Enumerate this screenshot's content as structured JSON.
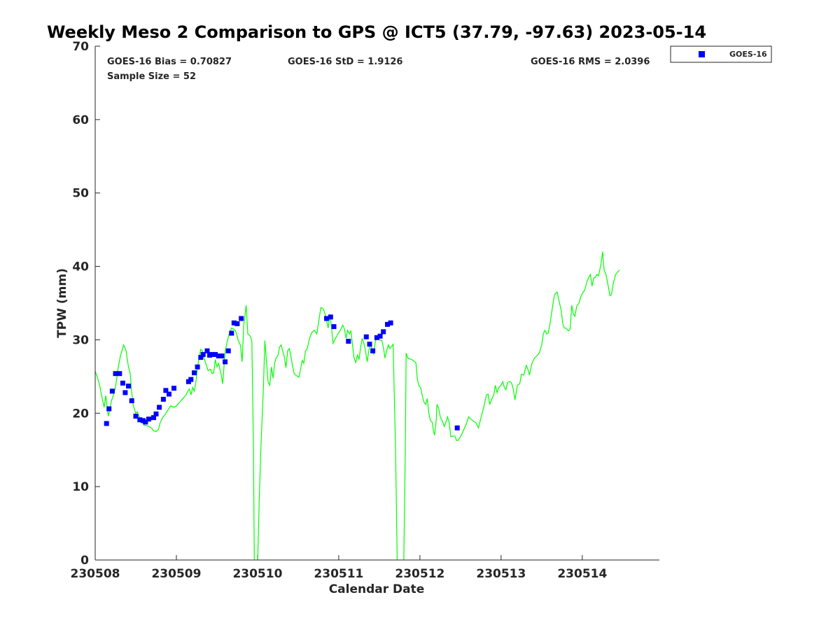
{
  "colors": {
    "gps_line": "#00ff00",
    "goes_marker": "#0000ff",
    "axis": "#262626"
  },
  "chart_data": {
    "type": "line",
    "title": "Weekly Meso 2 Comparison to GPS @ ICT5 (37.79, -97.63) 2023-05-14",
    "xlabel": "Calendar Date",
    "ylabel": "TPW (mm)",
    "xlim": [
      0,
      6.95
    ],
    "ylim": [
      0,
      70
    ],
    "x_ticks": [
      0,
      1,
      2,
      3,
      4,
      5,
      6
    ],
    "x_tick_labels": [
      "230508",
      "230509",
      "230510",
      "230511",
      "230512",
      "230513",
      "230514"
    ],
    "y_ticks": [
      0,
      10,
      20,
      30,
      40,
      50,
      60,
      70
    ],
    "y_tick_labels": [
      "0",
      "10",
      "20",
      "30",
      "40",
      "50",
      "60",
      "70"
    ],
    "stats": {
      "bias": "GOES-16 Bias = 0.70827",
      "std": "GOES-16 StD = 1.9126",
      "rms": "GOES-16 RMS = 2.0396",
      "sample": "Sample Size = 52"
    },
    "legend": {
      "position": "top-right",
      "entries": [
        "GOES-16"
      ]
    },
    "gps_series": [
      [
        0,
        25.7
      ],
      [
        0.03,
        24.8
      ],
      [
        0.06,
        23.5
      ],
      [
        0.09,
        21.8
      ],
      [
        0.11,
        20.8
      ],
      [
        0.13,
        22.4
      ],
      [
        0.16,
        19.6
      ],
      [
        0.18,
        20.5
      ],
      [
        0.2,
        21.7
      ],
      [
        0.22,
        22.3
      ],
      [
        0.25,
        23.5
      ],
      [
        0.28,
        26
      ],
      [
        0.31,
        27.8
      ],
      [
        0.35,
        29.3
      ],
      [
        0.38,
        28.5
      ],
      [
        0.41,
        26.3
      ],
      [
        0.43,
        25.5
      ],
      [
        0.45,
        22.8
      ],
      [
        0.47,
        21
      ],
      [
        0.5,
        20
      ],
      [
        0.52,
        20.2
      ],
      [
        0.55,
        19.2
      ],
      [
        0.58,
        18.8
      ],
      [
        0.6,
        18.4
      ],
      [
        0.63,
        18.3
      ],
      [
        0.66,
        18.2
      ],
      [
        0.7,
        17.9
      ],
      [
        0.72,
        17.6
      ],
      [
        0.75,
        17.5
      ],
      [
        0.78,
        17.8
      ],
      [
        0.8,
        18.7
      ],
      [
        0.83,
        19.4
      ],
      [
        0.86,
        19.8
      ],
      [
        0.9,
        20.5
      ],
      [
        0.93,
        21
      ],
      [
        0.97,
        20.8
      ],
      [
        1,
        21
      ],
      [
        1.04,
        21.5
      ],
      [
        1.08,
        22
      ],
      [
        1.12,
        22.5
      ],
      [
        1.14,
        23
      ],
      [
        1.16,
        23.3
      ],
      [
        1.18,
        22.5
      ],
      [
        1.2,
        23.5
      ],
      [
        1.22,
        23
      ],
      [
        1.24,
        24.2
      ],
      [
        1.26,
        26.2
      ],
      [
        1.28,
        27.5
      ],
      [
        1.3,
        28.7
      ],
      [
        1.32,
        28.5
      ],
      [
        1.34,
        27.5
      ],
      [
        1.37,
        26.5
      ],
      [
        1.39,
        25.8
      ],
      [
        1.42,
        26
      ],
      [
        1.44,
        25.4
      ],
      [
        1.46,
        25.5
      ],
      [
        1.48,
        27.3
      ],
      [
        1.5,
        26.3
      ],
      [
        1.52,
        26.8
      ],
      [
        1.55,
        25.3
      ],
      [
        1.57,
        24
      ],
      [
        1.6,
        28.3
      ],
      [
        1.62,
        29.5
      ],
      [
        1.65,
        30.8
      ],
      [
        1.68,
        31.6
      ],
      [
        1.7,
        31.5
      ],
      [
        1.73,
        31.2
      ],
      [
        1.76,
        30
      ],
      [
        1.79,
        29.2
      ],
      [
        1.81,
        27
      ],
      [
        1.83,
        32
      ],
      [
        1.86,
        34.7
      ],
      [
        1.88,
        30.8
      ],
      [
        1.91,
        30.5
      ],
      [
        1.93,
        29.8
      ],
      [
        1.95,
        15
      ],
      [
        1.96,
        0
      ],
      [
        1.98,
        -1
      ],
      [
        2,
        -1
      ],
      [
        2.02,
        8
      ],
      [
        2.04,
        15
      ],
      [
        2.07,
        23
      ],
      [
        2.09,
        29.9
      ],
      [
        2.11,
        27
      ],
      [
        2.13,
        24.2
      ],
      [
        2.15,
        23.8
      ],
      [
        2.17,
        26.3
      ],
      [
        2.19,
        24.8
      ],
      [
        2.21,
        26.8
      ],
      [
        2.23,
        27.6
      ],
      [
        2.25,
        27.8
      ],
      [
        2.27,
        29
      ],
      [
        2.29,
        29.3
      ],
      [
        2.31,
        28.5
      ],
      [
        2.33,
        27.7
      ],
      [
        2.35,
        26.2
      ],
      [
        2.37,
        28.5
      ],
      [
        2.39,
        28.8
      ],
      [
        2.41,
        27.8
      ],
      [
        2.43,
        26.5
      ],
      [
        2.45,
        25.4
      ],
      [
        2.48,
        25.1
      ],
      [
        2.51,
        24.9
      ],
      [
        2.53,
        26
      ],
      [
        2.55,
        27.2
      ],
      [
        2.57,
        26.8
      ],
      [
        2.59,
        28.5
      ],
      [
        2.61,
        28.7
      ],
      [
        2.64,
        30.2
      ],
      [
        2.67,
        31
      ],
      [
        2.7,
        31.3
      ],
      [
        2.73,
        30.8
      ],
      [
        2.76,
        33
      ],
      [
        2.78,
        34.4
      ],
      [
        2.81,
        34.2
      ],
      [
        2.84,
        33.2
      ],
      [
        2.87,
        31.6
      ],
      [
        2.89,
        33.5
      ],
      [
        2.91,
        31.8
      ],
      [
        2.93,
        29.5
      ],
      [
        2.96,
        30.2
      ],
      [
        2.99,
        30.8
      ],
      [
        3.02,
        31.3
      ],
      [
        3.05,
        32
      ],
      [
        3.07,
        31.5
      ],
      [
        3.09,
        30.2
      ],
      [
        3.11,
        31.3
      ],
      [
        3.13,
        30.8
      ],
      [
        3.15,
        31.2
      ],
      [
        3.17,
        29.3
      ],
      [
        3.19,
        27.5
      ],
      [
        3.21,
        26.9
      ],
      [
        3.23,
        27.9
      ],
      [
        3.25,
        27.3
      ],
      [
        3.27,
        29
      ],
      [
        3.29,
        30.2
      ],
      [
        3.31,
        29.5
      ],
      [
        3.33,
        28.5
      ],
      [
        3.35,
        27
      ],
      [
        3.37,
        28.5
      ],
      [
        3.39,
        29.3
      ],
      [
        3.41,
        28.8
      ],
      [
        3.43,
        28
      ],
      [
        3.45,
        29.7
      ],
      [
        3.47,
        30.5
      ],
      [
        3.5,
        30
      ],
      [
        3.53,
        29.9
      ],
      [
        3.55,
        29
      ],
      [
        3.57,
        27.5
      ],
      [
        3.59,
        28.5
      ],
      [
        3.61,
        29.3
      ],
      [
        3.63,
        28.8
      ],
      [
        3.65,
        29.1
      ],
      [
        3.67,
        29.4
      ],
      [
        3.7,
        15
      ],
      [
        3.72,
        0
      ],
      [
        3.74,
        -1
      ],
      [
        3.76,
        -1
      ],
      [
        3.78,
        -1
      ],
      [
        3.8,
        -1
      ],
      [
        3.82,
        15
      ],
      [
        3.83,
        28.2
      ],
      [
        3.85,
        27.5
      ],
      [
        3.9,
        27.3
      ],
      [
        3.95,
        26.9
      ],
      [
        3.97,
        24.5
      ],
      [
        3.99,
        23.7
      ],
      [
        4.01,
        23.5
      ],
      [
        4.03,
        22.3
      ],
      [
        4.05,
        21.5
      ],
      [
        4.07,
        21.2
      ],
      [
        4.09,
        22
      ],
      [
        4.11,
        20
      ],
      [
        4.13,
        19
      ],
      [
        4.15,
        18.8
      ],
      [
        4.17,
        17.4
      ],
      [
        4.18,
        17
      ],
      [
        4.2,
        19
      ],
      [
        4.21,
        21.2
      ],
      [
        4.23,
        20.7
      ],
      [
        4.25,
        19.5
      ],
      [
        4.28,
        18.8
      ],
      [
        4.3,
        18.2
      ],
      [
        4.32,
        18.8
      ],
      [
        4.34,
        19.5
      ],
      [
        4.36,
        18.8
      ],
      [
        4.38,
        16.8
      ],
      [
        4.41,
        16.9
      ],
      [
        4.43,
        16.9
      ],
      [
        4.45,
        16.3
      ],
      [
        4.47,
        16.3
      ],
      [
        4.5,
        16.8
      ],
      [
        4.53,
        17.5
      ],
      [
        4.57,
        18.5
      ],
      [
        4.6,
        19.5
      ],
      [
        4.63,
        19.2
      ],
      [
        4.66,
        18.9
      ],
      [
        4.69,
        18.7
      ],
      [
        4.72,
        18
      ],
      [
        4.75,
        19.3
      ],
      [
        4.79,
        21
      ],
      [
        4.82,
        22.5
      ],
      [
        4.84,
        22.6
      ],
      [
        4.86,
        21.2
      ],
      [
        4.88,
        21.8
      ],
      [
        4.91,
        22.5
      ],
      [
        4.93,
        23.8
      ],
      [
        4.95,
        22.8
      ],
      [
        4.97,
        23.5
      ],
      [
        5,
        23.8
      ],
      [
        5.02,
        24.3
      ],
      [
        5.04,
        23.5
      ],
      [
        5.06,
        23.2
      ],
      [
        5.08,
        24.2
      ],
      [
        5.11,
        24.3
      ],
      [
        5.13,
        24.1
      ],
      [
        5.15,
        23.3
      ],
      [
        5.17,
        21.8
      ],
      [
        5.2,
        23.8
      ],
      [
        5.23,
        24
      ],
      [
        5.25,
        25.3
      ],
      [
        5.28,
        25.2
      ],
      [
        5.31,
        26.5
      ],
      [
        5.33,
        26
      ],
      [
        5.35,
        25.2
      ],
      [
        5.38,
        26.8
      ],
      [
        5.41,
        27.5
      ],
      [
        5.44,
        27.8
      ],
      [
        5.47,
        28.2
      ],
      [
        5.5,
        29.3
      ],
      [
        5.52,
        30.8
      ],
      [
        5.54,
        31.3
      ],
      [
        5.56,
        30.8
      ],
      [
        5.58,
        30.9
      ],
      [
        5.6,
        32
      ],
      [
        5.62,
        33.5
      ],
      [
        5.64,
        35
      ],
      [
        5.66,
        36.2
      ],
      [
        5.69,
        36.5
      ],
      [
        5.71,
        35.5
      ],
      [
        5.74,
        34
      ],
      [
        5.76,
        32.2
      ],
      [
        5.78,
        31.6
      ],
      [
        5.8,
        31.6
      ],
      [
        5.83,
        31.2
      ],
      [
        5.85,
        31.4
      ],
      [
        5.87,
        34.7
      ],
      [
        5.89,
        33.5
      ],
      [
        5.91,
        33.2
      ],
      [
        5.93,
        34.5
      ],
      [
        5.96,
        35
      ],
      [
        5.98,
        35.8
      ],
      [
        6,
        36.3
      ],
      [
        6.03,
        36.8
      ],
      [
        6.06,
        38
      ],
      [
        6.08,
        38.5
      ],
      [
        6.1,
        38.9
      ],
      [
        6.12,
        37.3
      ],
      [
        6.14,
        38.4
      ],
      [
        6.16,
        38.5
      ],
      [
        6.18,
        38.9
      ],
      [
        6.2,
        38.7
      ],
      [
        6.23,
        40.3
      ],
      [
        6.25,
        42
      ],
      [
        6.27,
        39.4
      ],
      [
        6.29,
        39
      ],
      [
        6.32,
        37.3
      ],
      [
        6.34,
        36
      ],
      [
        6.36,
        36.2
      ],
      [
        6.38,
        37.6
      ],
      [
        6.41,
        38.9
      ],
      [
        6.44,
        39.3
      ],
      [
        6.46,
        39.5
      ]
    ],
    "goes_series": [
      [
        0.14,
        18.6
      ],
      [
        0.17,
        20.6
      ],
      [
        0.21,
        23
      ],
      [
        0.25,
        25.4
      ],
      [
        0.3,
        25.4
      ],
      [
        0.34,
        24.1
      ],
      [
        0.37,
        22.8
      ],
      [
        0.41,
        23.7
      ],
      [
        0.45,
        21.7
      ],
      [
        0.5,
        19.6
      ],
      [
        0.55,
        19.1
      ],
      [
        0.59,
        19
      ],
      [
        0.62,
        18.8
      ],
      [
        0.66,
        19.2
      ],
      [
        0.72,
        19.4
      ],
      [
        0.75,
        19.9
      ],
      [
        0.79,
        20.8
      ],
      [
        0.84,
        21.9
      ],
      [
        0.87,
        23.1
      ],
      [
        0.91,
        22.6
      ],
      [
        0.97,
        23.4
      ],
      [
        1.15,
        24.3
      ],
      [
        1.18,
        24.6
      ],
      [
        1.22,
        25.5
      ],
      [
        1.26,
        26.3
      ],
      [
        1.3,
        27.6
      ],
      [
        1.33,
        28
      ],
      [
        1.38,
        28.5
      ],
      [
        1.41,
        27.9
      ],
      [
        1.44,
        28
      ],
      [
        1.48,
        28
      ],
      [
        1.52,
        27.8
      ],
      [
        1.56,
        27.8
      ],
      [
        1.6,
        27
      ],
      [
        1.64,
        28.5
      ],
      [
        1.68,
        30.9
      ],
      [
        1.71,
        32.3
      ],
      [
        1.75,
        32.2
      ],
      [
        1.8,
        32.9
      ],
      [
        2.85,
        32.9
      ],
      [
        2.9,
        33.1
      ],
      [
        2.94,
        31.8
      ],
      [
        3.12,
        29.8
      ],
      [
        3.34,
        30.4
      ],
      [
        3.38,
        29.4
      ],
      [
        3.42,
        28.5
      ],
      [
        3.47,
        30.3
      ],
      [
        3.51,
        30.5
      ],
      [
        3.55,
        31.1
      ],
      [
        3.6,
        32.1
      ],
      [
        3.64,
        32.3
      ],
      [
        4.46,
        18
      ]
    ]
  }
}
